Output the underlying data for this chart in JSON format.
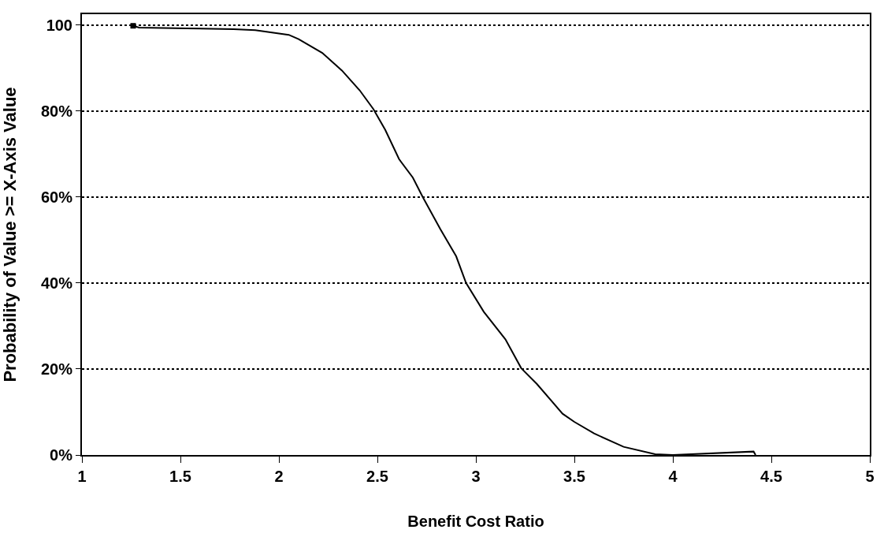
{
  "chart_data": {
    "type": "line",
    "xlabel": "Benefit Cost Ratio",
    "ylabel": "Probability of Value >= X-Axis Value",
    "x": [
      1.26,
      1.29,
      1.53,
      1.77,
      1.88,
      2.05,
      2.1,
      2.22,
      2.32,
      2.41,
      2.48,
      2.54,
      2.61,
      2.68,
      2.73,
      2.82,
      2.9,
      2.95,
      3.04,
      3.15,
      3.23,
      3.31,
      3.44,
      3.5,
      3.6,
      3.75,
      3.91,
      4.0,
      4.41,
      4.42
    ],
    "series": [
      {
        "color": "#000000",
        "values": [
          99.8,
          99.4,
          99.2,
          99.0,
          98.8,
          97.7,
          96.7,
          93.5,
          89.4,
          84.8,
          80.4,
          75.6,
          68.8,
          64.5,
          60,
          52.5,
          46.2,
          40,
          33.3,
          26.9,
          20.2,
          16.5,
          9.6,
          7.7,
          5.0,
          1.9,
          0.2,
          0,
          0.8,
          0
        ]
      }
    ],
    "xlim": [
      1,
      5
    ],
    "xticks": [
      1,
      1.5,
      2,
      2.5,
      3,
      3.5,
      4,
      4.5,
      5
    ],
    "ylim": [
      0,
      102.5
    ],
    "yticks": [
      {
        "value": 0,
        "label": "0%"
      },
      {
        "value": 20,
        "label": "20%"
      },
      {
        "value": 40,
        "label": "40%"
      },
      {
        "value": 60,
        "label": "60%"
      },
      {
        "value": 80,
        "label": "80%"
      },
      {
        "value": 100,
        "label": "100"
      }
    ],
    "grid": "y",
    "marker": "none",
    "line_style": "solid"
  }
}
